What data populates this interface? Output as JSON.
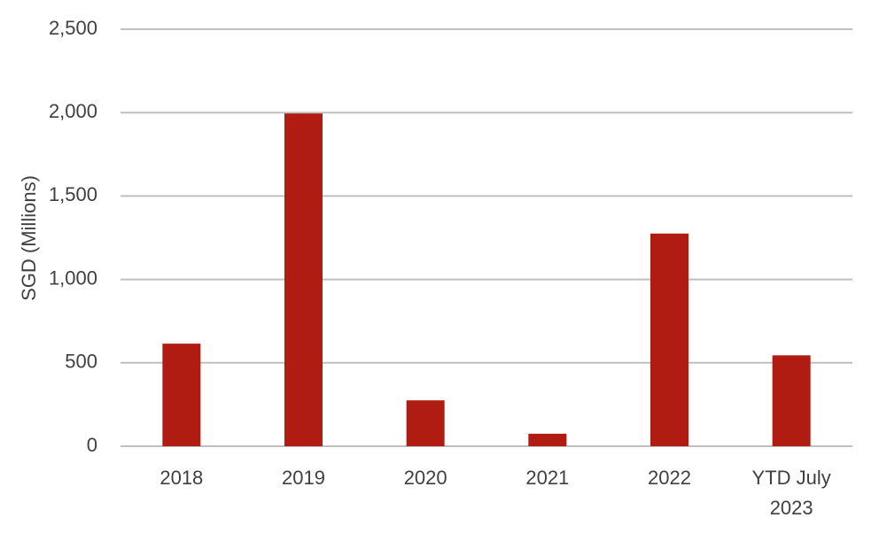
{
  "chart_data": {
    "type": "bar",
    "title": "",
    "xlabel": "",
    "ylabel": "SGD (Millions)",
    "ylim": [
      0,
      2500
    ],
    "yticks": [
      0,
      500,
      1000,
      1500,
      2000,
      2500
    ],
    "ytick_labels": [
      "0",
      "500",
      "1,000",
      "1,500",
      "2,000",
      "2,500"
    ],
    "grid": true,
    "legend": "none",
    "categories": [
      [
        "2018"
      ],
      [
        "2019"
      ],
      [
        "2020"
      ],
      [
        "2021"
      ],
      [
        "2022"
      ],
      [
        "YTD July",
        "2023"
      ]
    ],
    "values": [
      615,
      1995,
      275,
      75,
      1275,
      545
    ],
    "bar_color": "#b01c12"
  }
}
